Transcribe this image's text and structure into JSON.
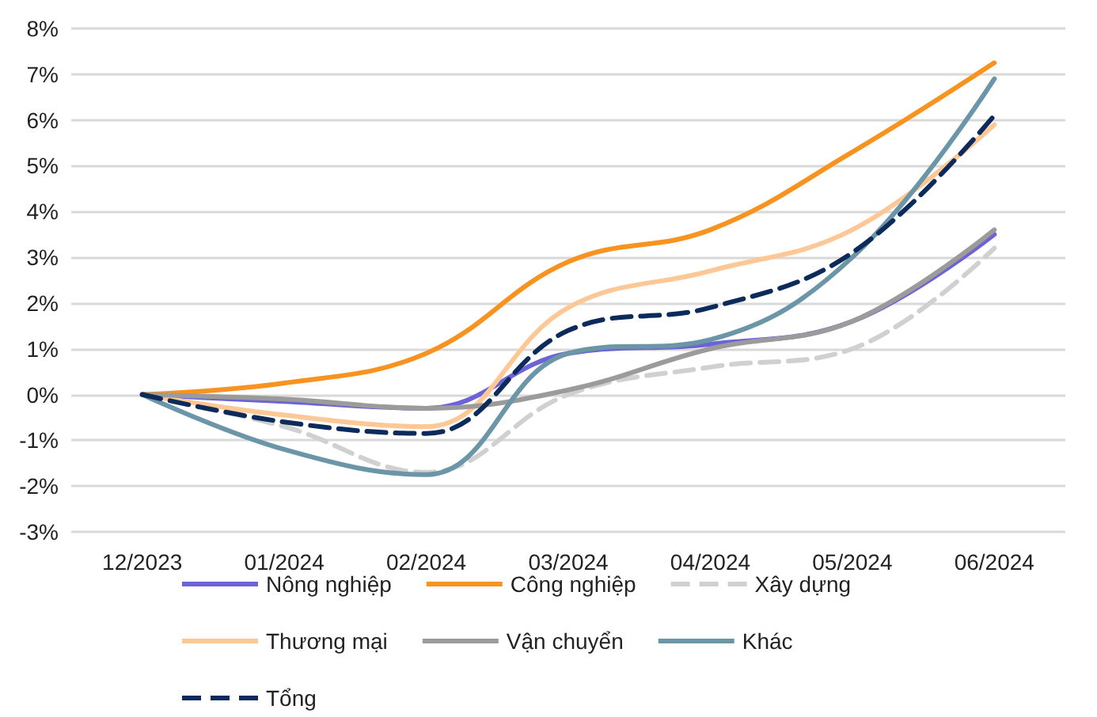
{
  "chart_data": {
    "type": "line",
    "categories": [
      "12/2023",
      "01/2024",
      "02/2024",
      "03/2024",
      "04/2024",
      "05/2024",
      "06/2024"
    ],
    "ylim": [
      -3,
      8
    ],
    "yticks": [
      {
        "value": -3,
        "label": "-3%"
      },
      {
        "value": -2,
        "label": "-2%"
      },
      {
        "value": -1,
        "label": "-1%"
      },
      {
        "value": 0,
        "label": "0%"
      },
      {
        "value": 1,
        "label": "1%"
      },
      {
        "value": 2,
        "label": "2%"
      },
      {
        "value": 3,
        "label": "3%"
      },
      {
        "value": 4,
        "label": "4%"
      },
      {
        "value": 5,
        "label": "5%"
      },
      {
        "value": 6,
        "label": "6%"
      },
      {
        "value": 7,
        "label": "7%"
      },
      {
        "value": 8,
        "label": "8%"
      }
    ],
    "grid": "y",
    "legend": "bottom",
    "marker": "none",
    "series": [
      {
        "name": "Nông nghiệp",
        "color": "#6b63d6",
        "values": [
          0,
          -0.15,
          -0.3,
          0.9,
          1.1,
          1.6,
          3.5
        ]
      },
      {
        "name": "Công nghiệp",
        "color": "#f7931e",
        "values": [
          0,
          0.25,
          0.9,
          2.9,
          3.6,
          5.3,
          7.25
        ]
      },
      {
        "name": "Xây dựng",
        "color": "#d0d0d0",
        "line_style": "dashed",
        "values": [
          0,
          -0.7,
          -1.7,
          0,
          0.6,
          1,
          3.2
        ]
      },
      {
        "name": "Thương mại",
        "color": "#fdc896",
        "values": [
          0,
          -0.45,
          -0.7,
          1.9,
          2.7,
          3.6,
          5.9
        ]
      },
      {
        "name": "Vận chuyển",
        "color": "#9b9b9b",
        "values": [
          0,
          -0.1,
          -0.3,
          0.1,
          1,
          1.6,
          3.6
        ]
      },
      {
        "name": "Khác",
        "color": "#6b96a8",
        "values": [
          0,
          -1.2,
          -1.75,
          0.9,
          1.2,
          3,
          6.9
        ]
      },
      {
        "name": "Tổng",
        "color": "#0c2b5b",
        "line_style": "dashed",
        "values": [
          0,
          -0.6,
          -0.85,
          1.4,
          1.9,
          3.1,
          6.1
        ]
      }
    ]
  }
}
